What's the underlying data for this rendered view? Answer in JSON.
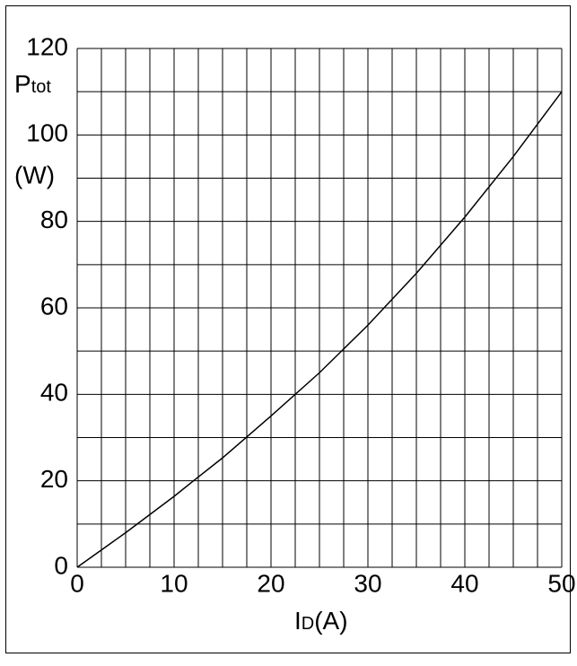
{
  "chart_data": {
    "type": "line",
    "ylabel": {
      "symbol": "P",
      "subscript": "tot",
      "unit": "(W)"
    },
    "xlabel": {
      "symbol": "I",
      "subscript": "D",
      "unit": "(A)"
    },
    "x": [
      0,
      5,
      10,
      12,
      15,
      20,
      25,
      30,
      35,
      40,
      45,
      50
    ],
    "series": [
      {
        "name": "Ptot",
        "color": "#000000",
        "values": [
          0,
          8,
          16.4,
          20,
          25.3,
          35,
          45,
          56,
          68,
          81,
          95,
          110
        ]
      }
    ],
    "xlim": [
      0,
      50
    ],
    "ylim": [
      0,
      120
    ],
    "xticks": [
      0,
      10,
      20,
      30,
      40,
      50
    ],
    "yticks": [
      0,
      20,
      40,
      60,
      80,
      100,
      120
    ],
    "xgrid": [
      0,
      2.5,
      5,
      7.5,
      10,
      12.5,
      15,
      17.5,
      20,
      22.5,
      25,
      27.5,
      30,
      32.5,
      35,
      37.5,
      40,
      42.5,
      45,
      47.5,
      50
    ],
    "ygrid": [
      0,
      10,
      20,
      30,
      40,
      50,
      60,
      70,
      80,
      90,
      100,
      110,
      120
    ],
    "grid": true
  }
}
